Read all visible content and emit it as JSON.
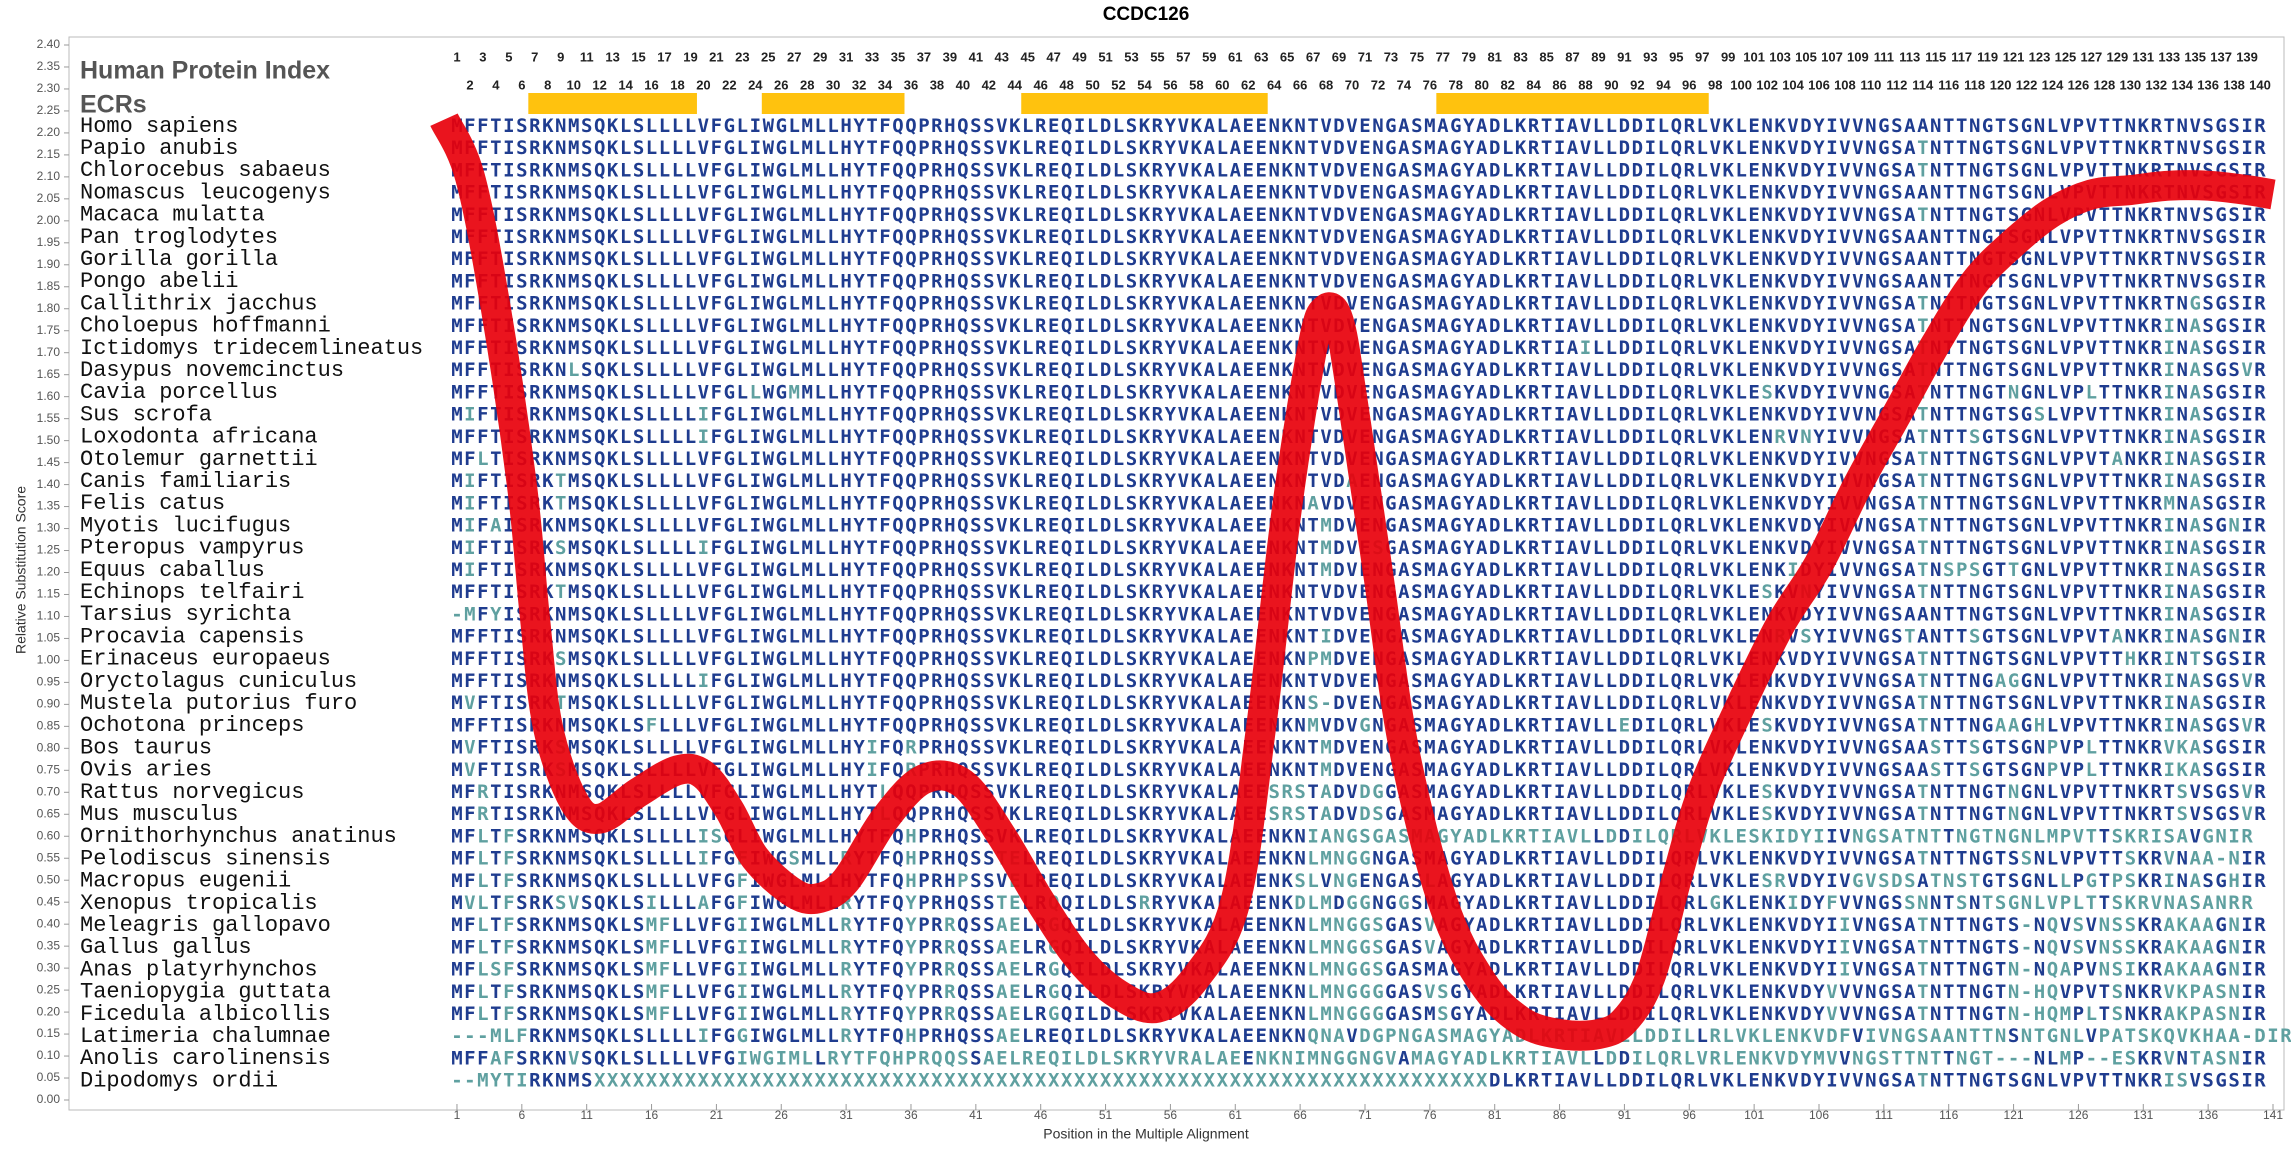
{
  "chart_data": {
    "type": "line",
    "title": "CCDC126",
    "xlabel": "Position in the Multiple Alignment",
    "ylabel": "Relative Substitution Score",
    "xlim": [
      0,
      141
    ],
    "ylim": [
      0,
      2.4
    ],
    "xticks": [
      1,
      6,
      11,
      16,
      21,
      26,
      31,
      36,
      41,
      46,
      51,
      56,
      61,
      66,
      71,
      76,
      81,
      86,
      91,
      96,
      101,
      106,
      111,
      116,
      121,
      126,
      131,
      136,
      141
    ],
    "yticks": [
      {
        "value": 0,
        "label": "0.00"
      },
      {
        "value": 0.05,
        "label": "0.05"
      },
      {
        "value": 0.1,
        "label": "0.10"
      },
      {
        "value": 0.15,
        "label": "0.15"
      },
      {
        "value": 0.2,
        "label": "0.20"
      },
      {
        "value": 0.25,
        "label": "0.25"
      },
      {
        "value": 0.3,
        "label": "0.30"
      },
      {
        "value": 0.35,
        "label": "0.35"
      },
      {
        "value": 0.4,
        "label": "0.40"
      },
      {
        "value": 0.45,
        "label": "0.45"
      },
      {
        "value": 0.5,
        "label": "0.50"
      },
      {
        "value": 0.55,
        "label": "0.55"
      },
      {
        "value": 0.6,
        "label": "0.60"
      },
      {
        "value": 0.65,
        "label": "0.65"
      },
      {
        "value": 0.7,
        "label": "0.70"
      },
      {
        "value": 0.75,
        "label": "0.75"
      },
      {
        "value": 0.8,
        "label": "0.80"
      },
      {
        "value": 0.85,
        "label": "0.85"
      },
      {
        "value": 0.9,
        "label": "0.90"
      },
      {
        "value": 0.95,
        "label": "0.95"
      },
      {
        "value": 1,
        "label": "1.00"
      },
      {
        "value": 1.05,
        "label": "1.05"
      },
      {
        "value": 1.1,
        "label": "1.10"
      },
      {
        "value": 1.15,
        "label": "1.15"
      },
      {
        "value": 1.2,
        "label": "1.20"
      },
      {
        "value": 1.25,
        "label": "1.25"
      },
      {
        "value": 1.3,
        "label": "1.30"
      },
      {
        "value": 1.35,
        "label": "1.35"
      },
      {
        "value": 1.4,
        "label": "1.40"
      },
      {
        "value": 1.45,
        "label": "1.45"
      },
      {
        "value": 1.5,
        "label": "1.50"
      },
      {
        "value": 1.55,
        "label": "1.55"
      },
      {
        "value": 1.6,
        "label": "1.60"
      },
      {
        "value": 1.65,
        "label": "1.65"
      },
      {
        "value": 1.7,
        "label": "1.70"
      },
      {
        "value": 1.75,
        "label": "1.75"
      },
      {
        "value": 1.8,
        "label": "1.80"
      },
      {
        "value": 1.85,
        "label": "1.85"
      },
      {
        "value": 1.9,
        "label": "1.90"
      },
      {
        "value": 1.95,
        "label": "1.95"
      },
      {
        "value": 2,
        "label": "2.00"
      },
      {
        "value": 2.05,
        "label": "2.05"
      },
      {
        "value": 2.1,
        "label": "2.10"
      },
      {
        "value": 2.15,
        "label": "2.15"
      },
      {
        "value": 2.2,
        "label": "2.20"
      },
      {
        "value": 2.25,
        "label": "2.25"
      },
      {
        "value": 2.3,
        "label": "2.30"
      },
      {
        "value": 2.35,
        "label": "2.35"
      },
      {
        "value": 2.4,
        "label": "2.40"
      }
    ],
    "x": [
      0,
      2,
      4,
      6,
      7,
      8,
      10,
      12,
      15,
      18,
      20,
      22,
      24,
      27,
      29,
      31,
      34,
      37,
      40,
      43,
      46,
      49,
      52,
      55,
      58,
      61,
      63,
      65,
      67,
      68,
      69,
      70,
      72,
      74,
      77,
      80,
      83,
      86,
      89,
      91,
      93,
      95,
      97,
      100,
      103,
      106,
      109,
      112,
      115,
      118,
      121,
      124,
      127,
      130,
      133,
      136,
      139,
      141
    ],
    "values": [
      2.23,
      2.1,
      1.8,
      1.4,
      1.1,
      0.85,
      0.68,
      0.64,
      0.7,
      0.75,
      0.74,
      0.66,
      0.55,
      0.47,
      0.46,
      0.5,
      0.64,
      0.73,
      0.72,
      0.6,
      0.45,
      0.32,
      0.24,
      0.21,
      0.28,
      0.45,
      0.85,
      1.35,
      1.72,
      1.8,
      1.77,
      1.6,
      1.2,
      0.8,
      0.45,
      0.27,
      0.18,
      0.15,
      0.15,
      0.18,
      0.28,
      0.5,
      0.7,
      0.9,
      1.08,
      1.22,
      1.4,
      1.56,
      1.72,
      1.86,
      1.95,
      2.02,
      2.06,
      2.07,
      2.08,
      2.08,
      2.07,
      2.06
    ],
    "color": "#e8000b",
    "index_label": "Human Protein Index",
    "ecr_label": "ECRs",
    "ecr_color": "#ffc20e",
    "ecrs": [
      [
        7,
        19
      ],
      [
        25,
        35
      ],
      [
        45,
        63
      ],
      [
        77,
        97
      ]
    ],
    "index_top": [
      1,
      3,
      5,
      7,
      9,
      11,
      13,
      15,
      17,
      19,
      21,
      23,
      25,
      27,
      29,
      31,
      33,
      35,
      37,
      39,
      41,
      43,
      45,
      47,
      49,
      51,
      53,
      55,
      57,
      59,
      61,
      63,
      65,
      67,
      69,
      71,
      73,
      75,
      77,
      79,
      81,
      83,
      85,
      87,
      89,
      91,
      93,
      95,
      97,
      99,
      101,
      103,
      105,
      107,
      109,
      111,
      113,
      115,
      117,
      119,
      121,
      123,
      125,
      127,
      129,
      131,
      133,
      135,
      137,
      139
    ],
    "index_bottom": [
      2,
      4,
      6,
      8,
      10,
      12,
      14,
      16,
      18,
      20,
      22,
      24,
      26,
      28,
      30,
      32,
      34,
      36,
      38,
      40,
      42,
      44,
      46,
      48,
      50,
      52,
      54,
      56,
      58,
      60,
      62,
      64,
      66,
      68,
      70,
      72,
      74,
      76,
      78,
      80,
      82,
      84,
      86,
      88,
      90,
      92,
      94,
      96,
      98,
      100,
      102,
      104,
      106,
      108,
      110,
      112,
      114,
      116,
      118,
      120,
      122,
      124,
      126,
      128,
      130,
      132,
      134,
      136,
      138,
      140
    ],
    "residue_colors": {
      "identical": "#1f3c8f",
      "different": "#5fa0a0"
    },
    "species": [
      "Homo sapiens",
      "Papio anubis",
      "Chlorocebus sabaeus",
      "Nomascus leucogenys",
      "Macaca mulatta",
      "Pan troglodytes",
      "Gorilla gorilla",
      "Pongo abelii",
      "Callithrix jacchus",
      "Choloepus hoffmanni",
      "Ictidomys tridecemlineatus",
      "Dasypus novemcinctus",
      "Cavia porcellus",
      "Sus scrofa",
      "Loxodonta africana",
      "Otolemur garnettii",
      "Canis familiaris",
      "Felis catus",
      "Myotis lucifugus",
      "Pteropus vampyrus",
      "Equus caballus",
      "Echinops telfairi",
      "Tarsius syrichta",
      "Procavia capensis",
      "Erinaceus europaeus",
      "Oryctolagus cuniculus",
      "Mustela putorius furo",
      "Ochotona princeps",
      "Bos taurus",
      "Ovis aries",
      "Rattus norvegicus",
      "Mus musculus",
      "Ornithorhynchus anatinus",
      "Pelodiscus sinensis",
      "Macropus eugenii",
      "Xenopus tropicalis",
      "Meleagris gallopavo",
      "Gallus gallus",
      "Anas platyrhynchos",
      "Taeniopygia guttata",
      "Ficedula albicollis",
      "Latimeria chalumnae",
      "Anolis carolinensis",
      "Dipodomys ordii"
    ],
    "sequences": [
      "MFFTISRKNMSQKLSLLLLVFGLIWGLMLLHYTFQQPRHQSSVKLREQILDLSKRYVKALAEENKNTVDVENGASMAGYADLKRTIAVLLDDILQRLVKLENKVDYIVVNGSAANTTNGTSGNLVPVTTNKRTNVSGSIR",
      "MFFTISRKNMSQKLSLLLLVFGLIWGLMLLHYTFQQPRHQSSVKLREQILDLSKRYVKALAEENKNTVDVENGASMAGYADLKRTIAVLLDDILQRLVKLENKVDYIVVNGSATNTTNGTSGNLVPVTTNKRTNVSGSIR",
      "MFFTISRKNMSQKLSLLLLVFGLIWGLMLLHYTFQQPRHQSSVKLREQILDLSKRYVKALAEENKNTVDVENGASMAGYADLKRTIAVLLDDILQRLVKLENKVDYIVVNGSATNTTNGTSGNLVPVTTNKRTNVSGSIR",
      "MFFTISRKNMSQKLSLLLLVFGLIWGLMLLHYTFQQPRHQSSVKLREQILDLSKRYVKALAEENKNTVDVENGASMAGYADLKRTIAVLLDDILQRLVKLENKVDYIVVNGSAANTTNGTSGNLVPVTTNKRTNVSGSIR",
      "MFFTISRKNMSQKLSLLLLVFGLIWGLMLLHYTFQQPRHQSSVKLREQILDLSKRYVKALAEENKNTVDVENGASMAGYADLKRTIAVLLDDILQRLVKLENKVDYIVVNGSATNTTNGTSGNLVPVTTNKRTNVSGSIR",
      "MFFTISRKNMSQKLSLLLLVFGLIWGLMLLHYTFQQPRHQSSVKLREQILDLSKRYVKALAEENKNTVDVENGASMAGYADLKRTIAVLLDDILQRLVKLENKVDYIVVNGSAANTTNGTSGNLVPVTTNKRTNVSGSIR",
      "MFFTISRKNMSQKLSLLLLVFGLIWGLMLLHYTFQQPRHQSSVKLREQILDLSKRYVKALAEENKNTVDVENGASMAGYADLKRTIAVLLDDILQRLVKLENKVDYIVVNGSAANTTNGTSGNLVPVTTNKRTNVSGSIR",
      "MFFTISRKNMSQKLSLLLLVFGLIWGLMLLHYTFQQPRHQSSVKLREQILDLSKRYVKALAEENKNTVDVENGASMAGYADLKRTIAVLLDDILQRLVKLENKVDYIVVNGSAANTTNGTSGNLVPVTTNKRTNVSGSIR",
      "MFFTISRKNMSQKLSLLLLVFGLIWGLMLLHYTFQQPRHQSSVKLREQILDLSKRYVKALAEENKNTVDVENGASMAGYADLKRTIAVLLDDILQRLVKLENKVDYIVVNGSATNTTNGTSGNLVPVTTNKRTNGSGSIR",
      "MFFTISRKNMSQKLSLLLLVFGLIWGLMLLHYTFQQPRHQSSVKLREQILDLSKRYVKALAEENKNTVDVENGASMAGYADLKRTIAVLLDDILQRLVKLENKVDYIVVNGSATNTTNGTSGNLVPVTTNKRINASGSIR",
      "MFFTISRKNMSQKLSLLLLVFGLIWGLMLLHYTFQQPRHQSSVKLREQILDLSKRYVKALAEENKNTVDVENGASMAGYADLKRTIAILLDDILQRLVKLENKVDYIVVNGSATNTTNGTSGNLVPVTTNKRINASGSIR",
      "MFFTISRKNLSQKLSLLLLVFGLIWGLMLLHYTFQQPRHQSSVKLREQILDLSKRYVKALAEENKNTVDVENGASMAGYADLKRTIAVLLDDILQRLVKLENKVDYIVVNGSATNTTNGTSGNLVPVTTNKRINASGSVR",
      "MFFTISRKNMSQKLSLLLLVFGLLWGMMLLHYTFQQPRHQSSVKLREQILDLSKRYVKALAEENKNTVDVENGASMAGYADLKRTIAVLLDDILQRLVKLESKVDYIVVNGSATNTTNGTNGNLVPLTTNKRINASGSIR",
      "MIFTISRKNMSQKLSLLLLIFGLIWGLMLLHYTFQQPRHQSSVKLREQILDLSKRYVKALAEENKNTVDVENGASMAGYADLKRTIAVLLDDILQRLVKLENKVDYIVVNGSATNTTNGTSGSLVPVTTNKRINASGSIR",
      "MFFTISRKNMSQKLSLLLLIFGLIWGLMLLHYTFQQPRHQSSVKLREQILDLSKRYVKALAEENKNTVDVENGASMAGYADLKRTIAVLLDDILQRLVKLENRVNYIVVNGSATNTTSGTSGNLVPVTTNKRINASGSIR",
      "MFLTISRKNMSQKLSLLLLVFGLIWGLMLLHYTFQQPRHQSSVKLREQILDLSKRYVKALAEENKNTVDVENGASMAGYADLKRTIAVLLDDILQRLVKLENKVDYIVVNGSATNTTNGTSGNLVPVTANKRINASGSIR",
      "MIFTISRKTMSQKLSLLLLVFGLIWGLMLLHYTFQQPRHQSSVKLREQILDLSKRYVKALAEENKNTVDAENGASMAGYADLKRTIAVLLDDILQRLVKLENKVDYIVVNGSATNTTNGTSGNLVPVTTNKRINASGSIR",
      "MIFTISRKTMSQKLSLLLLVFGLIWGLMLLHYTFQQPRHQSSVKLREQILDLSKRYVKALAEENKNAVDVENGASMAGYADLKRTIAVLLDDILQRLVKLENKVDYIVVNGSATNTTNGTSGNLVPVTTNKRMNASGSIR",
      "MIFAISRKNMSQKLSLLLLVFGLIWGLMLLHYTFQQPRHQSSVKLREQILDLSKRYVKALAEENKNTMDVENGASMAGYADLKRTIAVLLDDILQRLVKLENKVDYIVVNGSATNTTNGTSGNLVPVTTNKRINASGNIR",
      "MIFTISRKSMSQKLSLLLLIFGLIWGLMLLHYTFQQPRHQSSVKLREQILDLSKRYVKALAEENKNTMDVESGASMAGYADLKRTIAVLLDDILQRLVKLENKVDYIVVNGSATNTTNGTSGNLVPVTTNKRINASGSIR",
      "MIFTISRKNMSQKLSLLLLVFGLIWGLMLLHYTFQQPRHQSSVKLREQILDLSKRYVKALAEENKNTMDVENGASMAGYADLKRTIAVLLDDILQRLVKLENKIDYIVVNGSATNSPSGTTGNLVPVTTNKRINASGSIR",
      "MFFTISRKTMSQKLSLLLLVFGLIWGLMLLHYTFQQPRHQSSVKLREQILDLSKRYVKALAEENKNTVDVENGASMAGYADLKRTIAVLLDDILQRLVKLESKVNYIVVNGSATNTTNGTSGNLVPVTTNKRINASGSIR",
      "-MFYISRKNMSQKLSLLLLVFGLIWGLMLLHYTFQQPRHQSSVKLREQILDLSKRYVKALAEENKNTVDVENGASMAGYADLKRTIAVLLDDILQRLVKLENKVDYIVVNGSAANTTNGTSGNLVPVTTNKRINASGSIR",
      "MFFTISRKNMSQKLSLLLLVFGLIWGLMLLHYTFQQPRHQSSVKLREQILDLSKRYVKALAEENKNTIDVENGASMAGYADLKRTIAVLLDDILQRLVKLENRVSYIVVNGSTANTTSGTSGNLVPVTANKRINASGNIR",
      "MFFTISRKSMSQKLSLLLLVFGLIWGLMLLHYTFQQPRHQSSVKLREQILDLSKRYVKALAEENKNPMDVENGASMAGYADLKRTIAVLLDDILQRLVKLENKVDYIVVNGSATNTTNGTSGNLVPVTTHKRINTSGSIR",
      "MFFTISRKNMSQKLSLLLLIFGLIWGLMLLHYTFQQPRHQSSVKLREQILDLSKRYVKALAEENKNTVDVENGASMAGYADLKRTIAVLLDDILQRLVKLENKVDYIVVNGSATNTTNGAGGNLVPVTTNKRINASGSVR",
      "MVFTISRKTMSQKLSLLLLVFGLIWGLMLLHYTFQQPRHQSSVKLREQILDLSKRYVKALAEENKNS-DVENGASMAGYADLKRTIAVLLDDILQRLVKLENKVDYIVVNGSATNTTNGTSGNLVPVTTNKRINASGSIR",
      "MFFTISRKNMSQKLSFLLLVFGLIWGLMLLHYTFQQPRHQSSVKLREQILDLSKRYVKALAEENKNMVDVGNGASMAGYADLKRTIAVLLEDILQRLVKLESKVDYIVVNGSATNTTNGAAGHLVPVTTNKRINASGSVR",
      "MVFTISRKSMSQKLSLLLLVFGLIWGLMLLHYIFQRPRHQSSVKLREQILDLSKRYVKALAEENKNTMDVENGASMAGYADLKRTIAVLLDDILQRLVKLENKVDYIVVNGSAASTTSGTSGNPVPLTTNKRVKASGSIR",
      "MVFTISRKSMSQKLSLLLLVFGLIWGLMLLHYIFQRPRHQSSVKLREQILDLSKRYVKALAEENKNTMDVENGASMAGYADLKRTIAVLLDDILQRLVKLENKVDYIVVNGSAASTTSGTSGNPVPLTTNKRIKASGSIR",
      "MFRTISRKNMSQKLSLLLLVFGLIWGLMLLHYTLQQPRHQSSVKLREQILDLSKRYVKALAEESRSTADVDGGASMAGYADLKRTIAVLLDDILQRLVKLESKVDYIVVNGSATNTTNGTNGNLVPVTTNKRTSVSGSVR",
      "MFRTISRKNMSQKLSLLLLVFGLIWGLMLLHYTLQQPRHQSSVKLREQILDLSKRYVKALAEESRSTADVDSGASMAGYADLKRTIAVLLDDILQRLVKLESKVDYIVVNGSATNTTNGTNGNLVPVTTNKRTSVSGSVR",
      "MFLTFSRKNMSQKLSLLLLISGLIWGLMLLHYTFQHPRHQSSVKLREQILDLSKRYVKALAEENKNIANGSGASMAGYADLKRTIAVLLDDILQRLVKLESKIDYIIVNGSATNTTNGTNGNLMPVTTSKRISAVGNIR",
      "MFLTFSRKNMSQKLSLLLLIFGFIWGSMLLRYTFQHPRHQSSTELREQILDLSKRYVKALAEENKNLMNGGNGASMAGYADLKRTIAVLLDDILQRLVKLENKVDYIVVNGSATNTTNGTSSNLVPVTTSKRVNAA-NIR",
      "MFLTFSRKNMSQKLSLLLLVFGFIWGLMLLHYTFQHPRHPSSVELREQILDLSKRYVKALAEENKSLVNGENGASLAGYADLKRTIAVLLDDILQRLVKLESRVDYIVGVSDSATNSTGTSGNLLPGTPSKRINASGHIR",
      "MVLTFSRKSVSQKLSILLLAFGFIWGLMLLRYTFQYPRHQSSTELRQQILDLSRRYVKALAEENKDLMDGGNGGSMAGYADLKRTIAVLLDDILQRLGKLENKIDYFVVNGSSNNTSNTSGNLVPLTTSKRVNASANRR",
      "MFLTFSRKNMSQKLSMFLLVFGIIWGLMLLRYTFQYPRRQSSAELRGQILDLSKRYVKALAEENKNLMNGGSGASVAGYADLKRTIAVLLDDILQRLVKLENKVDYIIVNGSATNTTNGTS-NQVSVNSSKRAKAAGNIR",
      "MFLTFSRKNMSQKLSMFLLVFGIIWGLMLLRYTFQYPRRQSSAELRGQILDLSKRYVKALAEENKNLMNGGSGASVAGYADLKRTIAVLLDDILQRLVKLENKVDYIIVNGSATNTTNGTS-NQVSVNSSKRAKAAGNIR",
      "MFLSFSRKNMSQKLSMFLLVFGIIWGLMLLRYTFQYPRRQSSAELRGQILDLSKRYVKALAEENKNLMNGGSGASMAGYADLKRTIAVLLDDILQRLVKLENKVDYIIVNGSATNTTNGTN-NQAPVNSIKRAKAAGNIR",
      "MFLTFSRKNMSQKLSMFLLVFGIIWGLMLLRYTFQYPRRQSSAELRGQILDLSKRYVKALAEENKNLMNGGGGASVSGYADLKRTIAVLLDDILQRLVKLENKVDYVVVNGSATNTTNGTN-HQVPVTSNKRVKPASNIR",
      "MFLTFSRKNMSQKLSMFLLVFGIIWGLMLLRYTFQYPRRQSSAELRGQILDLSKRYVKALAEENKNLMNGGGGASMSGYADLKRTIAVLLDDILQRLVKLENKVDYVVVNGSATNTTNGTN-HQMPLTSNKRAKPASNIR",
      "---MLFRKNMSQKLSLLLLIFGGIWGLMLLRYTFQHPRHQSSAELREQILDLSKRYVKALAEENKNQNAVDGPNGASMAGYADLKRTIAVLLDDILLRLVKLENKVDFVIVNGSAANTTNSNTGNLVPATSKQVKHAA-DIR",
      "MFFAFSRKNVSQKLSLLLLVFGIWGIMLLRYTFQHPRQQSSAELREQILDLSKRYVRALAEENKNIMNGGNGVAMAGYADLKRTIAVLLDDILQRLVRLENKVDYMVVNGSTTNTTNGT---NLMP--ESKRVNTASNIR",
      "--MYTIRKNMSXXXXXXXXXXXXXXXXXXXXXXXXXXXXXXXXXXXXXXXXXXXXXXXXXXXXXXXXXXXXXXXXXXXXXDLKRTIAVLLDDILQRLVKLENKVDYIVVNGSATNTTNGTSGNLVPVTTNKRISVSGSIR"
    ]
  }
}
